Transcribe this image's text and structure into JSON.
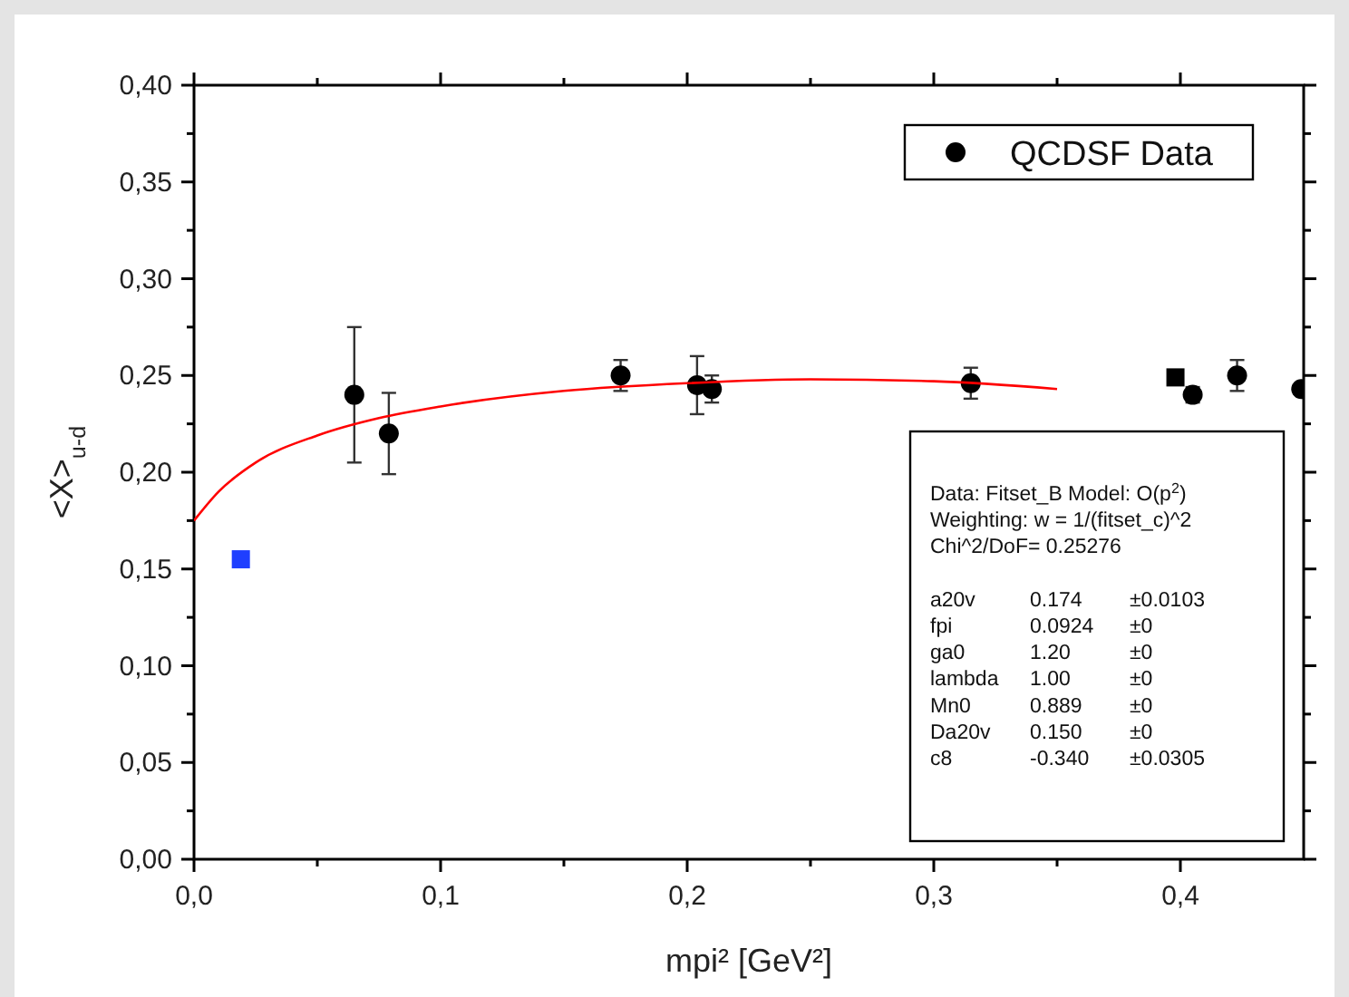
{
  "chart_data": {
    "type": "scatter",
    "xlabel": "mpi² [GeV²]",
    "ylabel": "<X>$_{u-d}$",
    "xlim": [
      0,
      0.45
    ],
    "ylim": [
      0,
      0.4
    ],
    "xticks": [
      {
        "value": 0,
        "label": "0,0"
      },
      {
        "value": 0.05,
        "label": null
      },
      {
        "value": 0.1,
        "label": "0,1"
      },
      {
        "value": 0.15,
        "label": null
      },
      {
        "value": 0.2,
        "label": "0,2"
      },
      {
        "value": 0.25,
        "label": null
      },
      {
        "value": 0.3,
        "label": "0,3"
      },
      {
        "value": 0.35,
        "label": null
      },
      {
        "value": 0.4,
        "label": "0,4"
      }
    ],
    "yticks": [
      {
        "value": 0,
        "label": "0,00"
      },
      {
        "value": 0.025,
        "label": null
      },
      {
        "value": 0.05,
        "label": "0,05"
      },
      {
        "value": 0.075,
        "label": null
      },
      {
        "value": 0.1,
        "label": "0,10"
      },
      {
        "value": 0.125,
        "label": null
      },
      {
        "value": 0.15,
        "label": "0,15"
      },
      {
        "value": 0.175,
        "label": null
      },
      {
        "value": 0.2,
        "label": "0,20"
      },
      {
        "value": 0.225,
        "label": null
      },
      {
        "value": 0.25,
        "label": "0,25"
      },
      {
        "value": 0.275,
        "label": null
      },
      {
        "value": 0.3,
        "label": "0,30"
      },
      {
        "value": 0.325,
        "label": null
      },
      {
        "value": 0.35,
        "label": "0,35"
      },
      {
        "value": 0.375,
        "label": null
      },
      {
        "value": 0.4,
        "label": "0,40"
      }
    ],
    "grid": false,
    "legend": "top right",
    "series": [
      {
        "name": "QCDSF Data",
        "marker": "circle",
        "color": "#000000",
        "x": [
          0.065,
          0.079,
          0.173,
          0.204,
          0.21,
          0.315,
          0.405,
          0.423,
          0.449
        ],
        "values": [
          0.24,
          0.22,
          0.25,
          0.245,
          0.243,
          0.246,
          0.24,
          0.25,
          0.243
        ],
        "errors": [
          0.035,
          0.021,
          0.008,
          0.015,
          0.007,
          0.008,
          0.004,
          0.008,
          null
        ]
      },
      {
        "marker": "square",
        "color": "#000000",
        "x": [
          0.398
        ],
        "values": [
          0.249
        ]
      },
      {
        "marker": "square",
        "color": "#1f3fff",
        "x": [
          0.019
        ],
        "values": [
          0.155
        ]
      },
      {
        "type": "line",
        "marker": "none",
        "color": "#ff0000",
        "x": [
          0,
          0.01,
          0.025,
          0.05,
          0.075,
          0.1,
          0.15,
          0.2,
          0.25,
          0.3,
          0.35
        ],
        "values": [
          0.175,
          0.19,
          0.205,
          0.219,
          0.228,
          0.234,
          0.242,
          0.246,
          0.248,
          0.247,
          0.243
        ]
      }
    ],
    "annotations": [
      "Data: Fitset_B  Model: O(p$^{2}$)",
      "Weighting: w = 1/(fitset_c)^2",
      "Chi^2/DoF= 0.25276",
      "a20v\t0.174\t±0.0103",
      "fpi\t0.0924\t±0",
      "ga0\t1.20\t±0",
      "lambda\t1.00\t±0",
      "Mn0\t0.889\t±0",
      "Da20v\t0.150\t±0",
      "c8\t-0.340\t±0.0305"
    ]
  }
}
